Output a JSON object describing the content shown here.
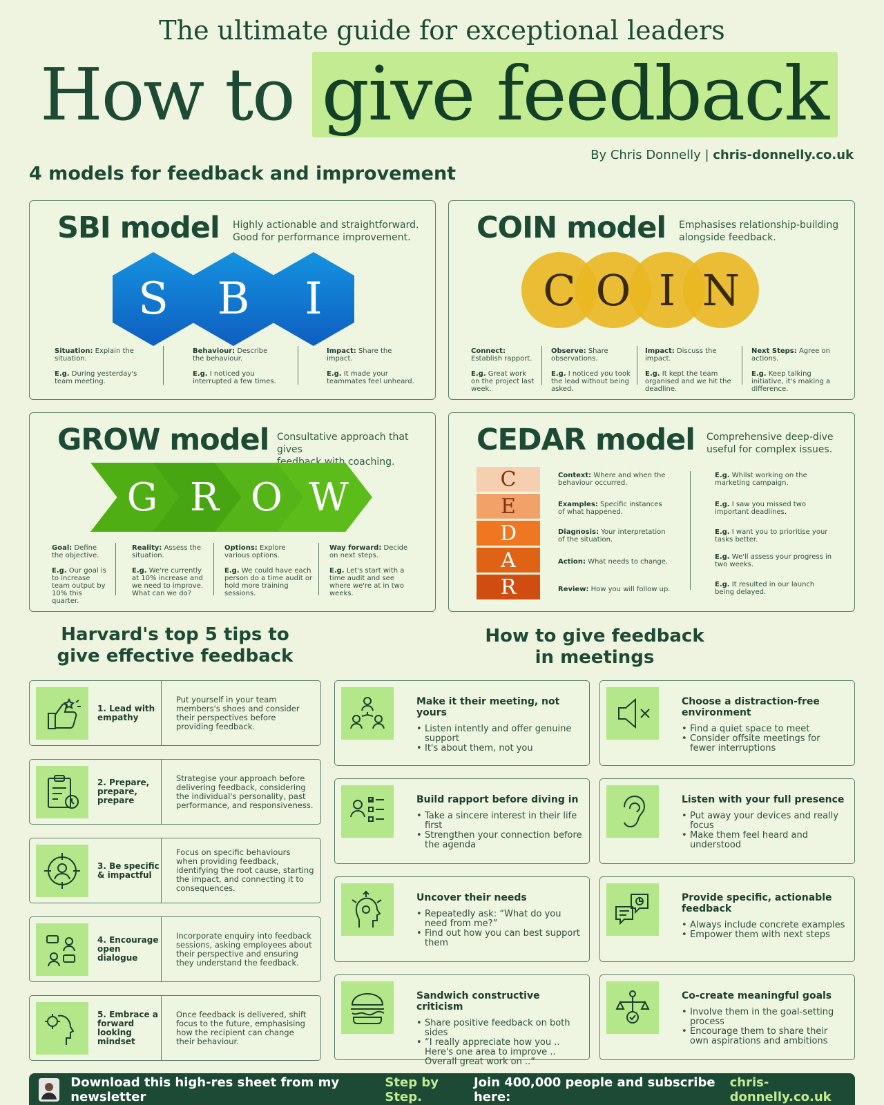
{
  "header": {
    "subtitle": "The ultimate guide for exceptional leaders",
    "title_plain": "How to",
    "title_highlight": "give feedback",
    "byline_prefix": "By Chris Donnelly |",
    "byline_site": "chris-donnelly.co.uk"
  },
  "section_title": "4 models for feedback and improvement",
  "sbi": {
    "title": "SBI model",
    "desc1": "Highly actionable and straightforward.",
    "desc2": "Good for performance improvement.",
    "letters": [
      "S",
      "B",
      "I"
    ],
    "cols": [
      {
        "term": "Situation:",
        "def": "Explain the situation.",
        "eg": "E.g.",
        "ex": "During yesterday's team meeting."
      },
      {
        "term": "Behaviour:",
        "def": "Describe the behaviour.",
        "eg": "E.g.",
        "ex": "I noticed you interrupted a few times."
      },
      {
        "term": "Impact:",
        "def": "Share the impact.",
        "eg": "E.g.",
        "ex": "It made your teammates feel unheard."
      }
    ]
  },
  "coin": {
    "title": "COIN model",
    "desc1": "Emphasises relationship-building",
    "desc2": "alongside feedback.",
    "letters": [
      "C",
      "O",
      "I",
      "N"
    ],
    "cols": [
      {
        "term": "Connect:",
        "def": "Establish rapport.",
        "eg": "E.g.",
        "ex": "Great work on the project last week."
      },
      {
        "term": "Observe:",
        "def": "Share observations.",
        "eg": "E.g.",
        "ex": "I noticed you took the lead without being asked."
      },
      {
        "term": "Impact:",
        "def": "Discuss the impact.",
        "eg": "E.g.",
        "ex": "It kept the team organised and we hit the deadline."
      },
      {
        "term": "Next Steps:",
        "def": "Agree on actions.",
        "eg": "E.g.",
        "ex": "Keep talking initiative, it's making a difference."
      }
    ]
  },
  "grow": {
    "title": "GROW model",
    "desc1": "Consultative approach that gives",
    "desc2": "feedback with coaching.",
    "letters": [
      "G",
      "R",
      "O",
      "W"
    ],
    "cols": [
      {
        "term": "Goal:",
        "def": "Define the objective.",
        "eg": "E.g.",
        "ex": "Our goal is to increase team output by 10% this quarter."
      },
      {
        "term": "Reality:",
        "def": "Assess the situation.",
        "eg": "E.g.",
        "ex": "We're currently at 10% increase and we need to improve. What can we do?"
      },
      {
        "term": "Options:",
        "def": "Explore various options.",
        "eg": "E.g.",
        "ex": "We could have each person do a time audit or hold more training sessions."
      },
      {
        "term": "Way forward:",
        "def": "Decide on next steps.",
        "eg": "E.g.",
        "ex": "Let's start with a time audit and see where we're at in two weeks."
      }
    ]
  },
  "cedar": {
    "title": "CEDAR model",
    "desc1": "Comprehensive deep-dive",
    "desc2": "useful for complex issues.",
    "letters": [
      "C",
      "E",
      "D",
      "A",
      "R"
    ],
    "rows": [
      {
        "term": "Context:",
        "def": "Where and when the behaviour occurred.",
        "eg": "E.g.",
        "ex": "Whilst working on the marketing campaign."
      },
      {
        "term": "Examples:",
        "def": "Specific instances of what happened.",
        "eg": "E.g.",
        "ex": "I saw you missed two important deadlines."
      },
      {
        "term": "Diagnosis:",
        "def": "Your interpretation of the situation.",
        "eg": "E.g.",
        "ex": "I want you to prioritise your tasks better."
      },
      {
        "term": "Action:",
        "def": "What needs to change.",
        "eg": "E.g.",
        "ex": "We'll assess your progress in two weeks."
      },
      {
        "term": "Review:",
        "def": "How you will follow up.",
        "eg": "E.g.",
        "ex": "It resulted in our launch being delayed."
      }
    ]
  },
  "harvard": {
    "title1": "Harvard's top 5 tips to",
    "title2": "give effective feedback",
    "tips": [
      {
        "label": "1. Lead with empathy",
        "text": "Put yourself in your team members's shoes and consider their perspectives before providing feedback.",
        "icon": "thumbs-up-icon"
      },
      {
        "label": "2. Prepare, prepare, prepare",
        "text": "Strategise your approach before delivering feedback, considering the individual's personality, past performance, and responsiveness.",
        "icon": "clipboard-clock-icon"
      },
      {
        "label": "3. Be specific & impactful",
        "text": "Focus on specific behaviours when providing feedback, identifying the root cause, starting the impact, and connecting it to consequences.",
        "icon": "target-person-icon"
      },
      {
        "label": "4. Encourage open dialogue",
        "text": "Incorporate enquiry into feedback sessions, asking employees about their perspective and ensuring they understand the feedback.",
        "icon": "dialogue-icon"
      },
      {
        "label": "5. Embrace a forward looking mindset",
        "text": "Once feedback is delivered, shift focus to the future, emphasising how the recipient can change their behaviour.",
        "icon": "head-gear-icon"
      }
    ]
  },
  "meetings": {
    "title1": "How to give feedback",
    "title2": "in meetings",
    "cards": [
      {
        "head": "Make it their meeting, not yours",
        "bullets": [
          "Listen intently and offer genuine support",
          "It's about them, not you"
        ],
        "icon": "people-network-icon"
      },
      {
        "head": "Choose a distraction-free environment",
        "bullets": [
          "Find a quiet space to meet",
          "Consider offsite meetings for fewer interruptions"
        ],
        "icon": "mute-speaker-icon"
      },
      {
        "head": "Build rapport before diving in",
        "bullets": [
          "Take a sincere interest in their life first",
          "Strengthen your connection before the agenda"
        ],
        "icon": "person-checklist-icon"
      },
      {
        "head": "Listen with your full presence",
        "bullets": [
          "Put away your devices and really focus",
          "Make them feel heard and understood"
        ],
        "icon": "ear-icon"
      },
      {
        "head": "Uncover their needs",
        "bullets": [
          "Repeatedly ask: “What do you need from me?”",
          "Find out how you can best support them"
        ],
        "icon": "head-arrows-icon"
      },
      {
        "head": "Provide specific, actionable feedback",
        "bullets": [
          "Always include concrete examples",
          "Empower them with next steps"
        ],
        "icon": "chat-chart-icon"
      },
      {
        "head": "Sandwich constructive criticism",
        "bullets": [
          "Share positive feedback on both sides",
          "“I really appreciate how you .. Here's one area to improve .. Overall great work on ..”"
        ],
        "icon": "burger-icon"
      },
      {
        "head": "Co-create meaningful goals",
        "bullets": [
          "Involve them in the goal-setting process",
          "Encourage them to share their own aspirations and ambitions"
        ],
        "icon": "goal-balance-icon"
      }
    ]
  },
  "footer": {
    "text1": "Download this high-res sheet from my newsletter",
    "newsletter": "Step by Step.",
    "text2": "Join 400,000 people and subscribe here:",
    "site": "chris-donnelly.co.uk"
  },
  "colors": {
    "bg": "#eef4e0",
    "dark_green": "#1d4a34",
    "highlight": "#c2eb92",
    "icon_bg": "#b4e68a",
    "sbi_blue": "#1592e0",
    "coin_gold": "#e9b721",
    "grow_green": "#4fae14"
  }
}
